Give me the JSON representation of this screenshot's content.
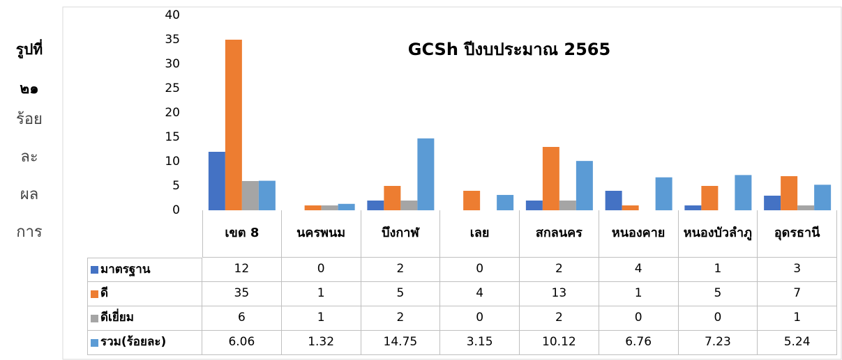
{
  "caption_lines": [
    "รูปที่",
    "๒๑",
    "ร้อย",
    "ละ",
    "ผล",
    "การ"
  ],
  "chart_data": {
    "type": "bar",
    "title": "GCSh ปีงบประมาณ 2565",
    "categories": [
      "เขต 8",
      "นครพนม",
      "บึงกาฬ",
      "เลย",
      "สกลนคร",
      "หนองคาย",
      "หนองบัวลำภู",
      "อุดรธานี"
    ],
    "series": [
      {
        "name": "มาตรฐาน",
        "color": "#4472c4",
        "values": [
          12,
          0,
          2,
          0,
          2,
          4,
          1,
          3
        ]
      },
      {
        "name": "ดี",
        "color": "#ed7d31",
        "values": [
          35,
          1,
          5,
          4,
          13,
          1,
          5,
          7
        ]
      },
      {
        "name": "ดีเยี่ยม",
        "color": "#a5a5a5",
        "values": [
          6,
          1,
          2,
          0,
          2,
          0,
          0,
          1
        ]
      },
      {
        "name": "รวม(ร้อยละ)",
        "color": "#5b9bd5",
        "values": [
          6.06,
          1.32,
          14.75,
          3.15,
          10.12,
          6.76,
          7.23,
          5.24
        ]
      }
    ],
    "ylim": [
      0,
      40
    ],
    "yticks": [
      0,
      5,
      10,
      15,
      20,
      25,
      30,
      35,
      40
    ],
    "grid": false,
    "data_table": true
  }
}
